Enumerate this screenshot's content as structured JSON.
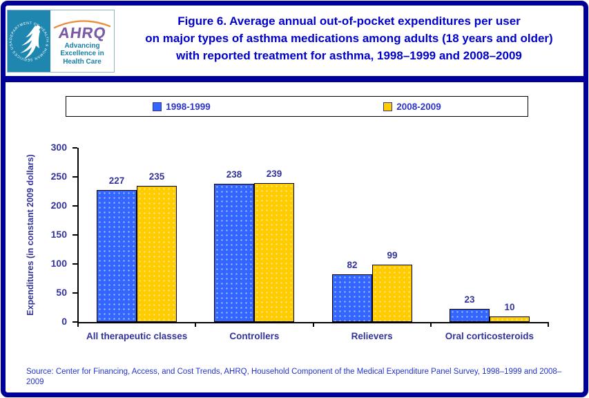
{
  "header": {
    "logo": {
      "ahrq_text": "AHRQ",
      "tagline_line1": "Advancing",
      "tagline_line2": "Excellence in",
      "tagline_line3": "Health Care",
      "seal_text": "DEPARTMENT OF HEALTH & HUMAN SERVICES USA"
    },
    "title_line1": "Figure 6. Average annual out-of-pocket expenditures per user",
    "title_line2": "on major types of asthma medications among adults (18 years and older)",
    "title_line3": "with reported treatment for asthma, 1998–1999 and 2008–2009"
  },
  "chart_data": {
    "type": "bar",
    "title": "Figure 6. Average annual out-of-pocket expenditures per user on major types of asthma medications among adults (18 years and older) with reported treatment for asthma, 1998–1999 and 2008–2009",
    "categories": [
      "All therapeutic classes",
      "Controllers",
      "Relievers",
      "Oral corticosteroids"
    ],
    "series": [
      {
        "name": "1998-1999",
        "color": "#3366ff",
        "values": [
          227,
          238,
          82,
          23
        ]
      },
      {
        "name": "2008-2009",
        "color": "#ffcc00",
        "values": [
          235,
          239,
          99,
          10
        ]
      }
    ],
    "xlabel": "",
    "ylabel": "Expenditures (in constant 2009 dollars)",
    "ylim": [
      0,
      300
    ],
    "yticks": [
      0,
      50,
      100,
      150,
      200,
      250,
      300
    ],
    "legend_position": "top",
    "grid": false
  },
  "source": {
    "text": "Source: Center for Financing, Access, and Cost Trends, AHRQ, Household Component of the Medical Expenditure Panel Survey,  1998–1999 and 2008–2009"
  },
  "colors": {
    "frame_border": "#000099",
    "title_text": "#0000cc",
    "axis_text": "#333399",
    "legend_text": "#2d35c8",
    "source_text": "#2233cc",
    "series1_blue": "#3366ff",
    "series2_yellow": "#ffcc00",
    "logo_seal_bg": "#1f86b0",
    "logo_ahrq_purple": "#7b5aa6",
    "logo_arc_orange": "#e8923f",
    "logo_tagline_teal": "#177fa6"
  }
}
